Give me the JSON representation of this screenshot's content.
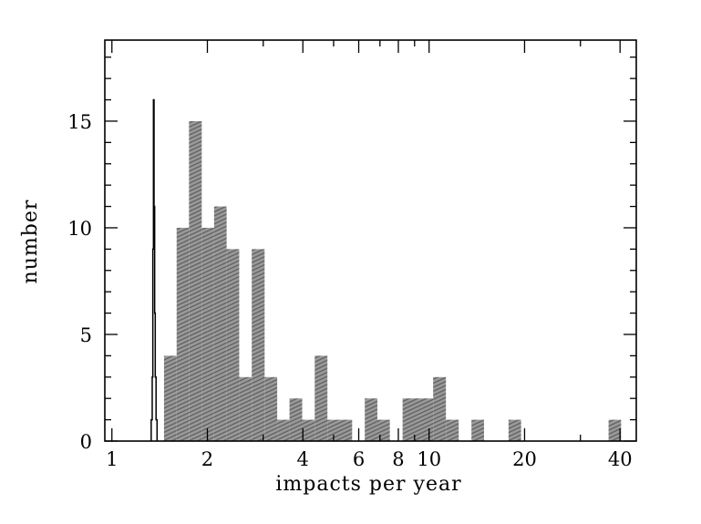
{
  "chart_data": {
    "type": "bar",
    "xlabel": "impacts per year",
    "ylabel": "number",
    "xscale": "log",
    "xlim": [
      0.95,
      45
    ],
    "ylim": [
      0,
      18.8
    ],
    "x_ticks": [
      1,
      2,
      4,
      6,
      8,
      10,
      20,
      40
    ],
    "x_tick_labels": [
      "1",
      "2",
      "4",
      "6",
      "8",
      "10",
      "20",
      "40"
    ],
    "y_ticks": [
      0,
      5,
      10,
      15
    ],
    "y_tick_labels": [
      "0",
      "5",
      "10",
      "15"
    ],
    "bar_fill": "#9a9a9a",
    "bar_hatch": "#5e5e5e",
    "series": [
      {
        "style": "hatched-gray-histogram",
        "values": [
          {
            "x0": 1.46,
            "x1": 1.6,
            "y": 4
          },
          {
            "x0": 1.6,
            "x1": 1.75,
            "y": 10
          },
          {
            "x0": 1.75,
            "x1": 1.92,
            "y": 15
          },
          {
            "x0": 1.92,
            "x1": 2.1,
            "y": 10
          },
          {
            "x0": 2.1,
            "x1": 2.3,
            "y": 11
          },
          {
            "x0": 2.3,
            "x1": 2.52,
            "y": 9
          },
          {
            "x0": 2.52,
            "x1": 2.76,
            "y": 3
          },
          {
            "x0": 2.76,
            "x1": 3.03,
            "y": 9
          },
          {
            "x0": 3.03,
            "x1": 3.32,
            "y": 3
          },
          {
            "x0": 3.32,
            "x1": 3.63,
            "y": 1
          },
          {
            "x0": 3.63,
            "x1": 3.98,
            "y": 2
          },
          {
            "x0": 3.98,
            "x1": 4.36,
            "y": 1
          },
          {
            "x0": 4.36,
            "x1": 4.78,
            "y": 4
          },
          {
            "x0": 4.78,
            "x1": 5.72,
            "y": 1
          },
          {
            "x0": 6.27,
            "x1": 6.87,
            "y": 2
          },
          {
            "x0": 6.87,
            "x1": 7.52,
            "y": 1
          },
          {
            "x0": 8.25,
            "x1": 10.3,
            "y": 2
          },
          {
            "x0": 10.3,
            "x1": 11.3,
            "y": 3
          },
          {
            "x0": 11.3,
            "x1": 12.4,
            "y": 1
          },
          {
            "x0": 13.6,
            "x1": 14.9,
            "y": 1
          },
          {
            "x0": 17.8,
            "x1": 19.5,
            "y": 1
          },
          {
            "x0": 36.8,
            "x1": 40.3,
            "y": 1
          }
        ]
      },
      {
        "style": "outline-histogram",
        "values": [
          {
            "x0": 1.33,
            "x1": 1.34,
            "y": 1
          },
          {
            "x0": 1.34,
            "x1": 1.346,
            "y": 3
          },
          {
            "x0": 1.346,
            "x1": 1.352,
            "y": 9
          },
          {
            "x0": 1.352,
            "x1": 1.358,
            "y": 16
          },
          {
            "x0": 1.358,
            "x1": 1.364,
            "y": 11
          },
          {
            "x0": 1.364,
            "x1": 1.37,
            "y": 6
          },
          {
            "x0": 1.37,
            "x1": 1.378,
            "y": 3
          },
          {
            "x0": 1.378,
            "x1": 1.388,
            "y": 1
          }
        ]
      }
    ]
  }
}
